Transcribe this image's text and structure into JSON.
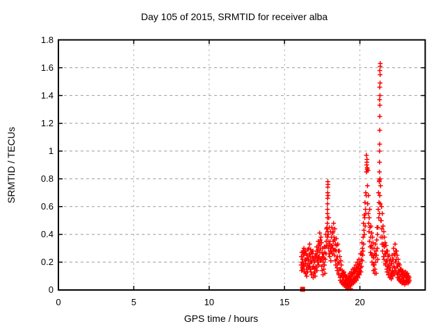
{
  "page": {
    "background": "#ffffff"
  },
  "chart_data": {
    "type": "scatter",
    "title": "Day 105 of 2015, SRMTID for receiver alba",
    "xlabel": "GPS time / hours",
    "ylabel": "SRMTID / TECUs",
    "xlim": [
      0,
      24.33
    ],
    "ylim": [
      0,
      1.8
    ],
    "xticks": {
      "values": [
        0,
        5,
        10,
        15,
        20
      ],
      "labels": [
        "0",
        "5",
        "10",
        "15",
        "20"
      ]
    },
    "yticks": {
      "values": [
        0,
        0.2,
        0.4,
        0.6,
        0.8,
        1,
        1.2,
        1.4,
        1.6,
        1.8
      ],
      "labels": [
        "0",
        "0.2",
        "0.4",
        "0.6",
        "0.8",
        "1",
        "1.2",
        "1.4",
        "1.6",
        "1.8"
      ]
    },
    "grid": true,
    "legend_position": "none",
    "marker": "plus",
    "marker_color": "#ff0000",
    "grid_color": "#999999",
    "border_color": "#000000",
    "notes": "dense + marker scatter from ~16.1h to ~23.3h; filled square datum on axis at start; spikes to 0.78 near 17.9h, ~0.97 near 20.45h, max 1.63 near 21.35h",
    "square_point": [
      16.2,
      0.005
    ],
    "series_runs": [
      [
        16.1,
        0.017,
        [
          0.18,
          0.24,
          0.14,
          0.27,
          0.2,
          0.16
        ]
      ],
      [
        16.2,
        0.017,
        [
          0.22,
          0.15,
          0.28,
          0.19,
          0.25,
          0.3
        ]
      ],
      [
        16.3,
        0.017,
        [
          0.17,
          0.26,
          0.13,
          0.22,
          0.28,
          0.19
        ]
      ],
      [
        16.4,
        0.017,
        [
          0.12,
          0.21,
          0.26,
          0.15,
          0.1,
          0.23
        ]
      ],
      [
        16.5,
        0.017,
        [
          0.18,
          0.25,
          0.13,
          0.29,
          0.21,
          0.16
        ]
      ],
      [
        16.6,
        0.017,
        [
          0.22,
          0.3,
          0.17,
          0.26,
          0.33,
          0.19
        ]
      ],
      [
        16.7,
        0.017,
        [
          0.15,
          0.24,
          0.29,
          0.13,
          0.21,
          0.27
        ]
      ],
      [
        16.8,
        0.017,
        [
          0.11,
          0.2,
          0.26,
          0.16,
          0.23,
          0.28
        ]
      ],
      [
        16.9,
        0.017,
        [
          0.09,
          0.17,
          0.23,
          0.12,
          0.2,
          0.15
        ]
      ],
      [
        17.0,
        0.017,
        [
          0.13,
          0.21,
          0.1,
          0.24,
          0.17,
          0.26
        ]
      ],
      [
        17.1,
        0.017,
        [
          0.16,
          0.25,
          0.31,
          0.14,
          0.22,
          0.28
        ]
      ],
      [
        17.2,
        0.017,
        [
          0.2,
          0.29,
          0.35,
          0.23,
          0.18,
          0.32
        ]
      ],
      [
        17.3,
        0.017,
        [
          0.24,
          0.33,
          0.41,
          0.27,
          0.36,
          0.21
        ]
      ],
      [
        17.4,
        0.017,
        [
          0.3,
          0.38,
          0.22,
          0.34,
          0.17,
          0.27
        ]
      ],
      [
        17.5,
        0.017,
        [
          0.14,
          0.24,
          0.3,
          0.11,
          0.2,
          0.26
        ]
      ],
      [
        17.6,
        0.017,
        [
          0.15,
          0.23,
          0.31,
          0.18,
          0.27,
          0.12
        ]
      ],
      [
        17.7,
        0.017,
        [
          0.22,
          0.31,
          0.4,
          0.26,
          0.35,
          0.44
        ]
      ],
      [
        17.8,
        0.017,
        [
          0.32,
          0.45,
          0.38,
          0.55,
          0.42,
          0.35
        ]
      ],
      [
        17.9,
        0.017,
        [
          0.4,
          0.3,
          0.52,
          0.26,
          0.45,
          0.33
        ]
      ],
      [
        18.0,
        0.017,
        [
          0.24,
          0.35,
          0.28,
          0.42,
          0.21,
          0.31
        ]
      ],
      [
        18.1,
        0.017,
        [
          0.28,
          0.38,
          0.45,
          0.32,
          0.26,
          0.41
        ]
      ],
      [
        18.2,
        0.017,
        [
          0.3,
          0.42,
          0.35,
          0.48,
          0.28,
          0.38
        ]
      ],
      [
        18.3,
        0.017,
        [
          0.25,
          0.36,
          0.44,
          0.29,
          0.21,
          0.33
        ]
      ],
      [
        18.4,
        0.017,
        [
          0.18,
          0.28,
          0.37,
          0.22,
          0.32,
          0.16
        ]
      ],
      [
        18.5,
        0.017,
        [
          0.14,
          0.24,
          0.33,
          0.19,
          0.28,
          0.12
        ]
      ],
      [
        18.6,
        0.017,
        [
          0.11,
          0.2,
          0.28,
          0.15,
          0.24,
          0.09
        ]
      ],
      [
        18.7,
        0.017,
        [
          0.07,
          0.15,
          0.21,
          0.11,
          0.18,
          0.06
        ]
      ],
      [
        18.8,
        0.017,
        [
          0.05,
          0.1,
          0.14,
          0.07,
          0.12,
          0.04
        ]
      ],
      [
        18.9,
        0.017,
        [
          0.04,
          0.09,
          0.13,
          0.06,
          0.11,
          0.03
        ]
      ],
      [
        19.0,
        0.017,
        [
          0.03,
          0.07,
          0.11,
          0.05,
          0.09,
          0.02
        ]
      ],
      [
        19.1,
        0.017,
        [
          0.02,
          0.06,
          0.09,
          0.04,
          0.07,
          0.01
        ]
      ],
      [
        19.2,
        0.017,
        [
          0.03,
          0.08,
          0.05,
          0.1,
          0.02,
          0.06
        ]
      ],
      [
        19.3,
        0.017,
        [
          0.04,
          0.09,
          0.12,
          0.06,
          0.03,
          0.08
        ]
      ],
      [
        19.4,
        0.017,
        [
          0.05,
          0.1,
          0.13,
          0.07,
          0.04,
          0.11
        ]
      ],
      [
        19.5,
        0.017,
        [
          0.06,
          0.11,
          0.15,
          0.08,
          0.05,
          0.13
        ]
      ],
      [
        19.6,
        0.017,
        [
          0.07,
          0.12,
          0.16,
          0.09,
          0.06,
          0.14
        ]
      ],
      [
        19.7,
        0.017,
        [
          0.08,
          0.13,
          0.18,
          0.1,
          0.07,
          0.15
        ]
      ],
      [
        19.8,
        0.017,
        [
          0.1,
          0.15,
          0.2,
          0.12,
          0.09,
          0.17
        ]
      ],
      [
        19.9,
        0.017,
        [
          0.12,
          0.17,
          0.22,
          0.14,
          0.11,
          0.19
        ]
      ],
      [
        20.0,
        0.017,
        [
          0.14,
          0.19,
          0.26,
          0.16,
          0.13,
          0.22
        ]
      ],
      [
        20.1,
        0.017,
        [
          0.17,
          0.26,
          0.34,
          0.21,
          0.3,
          0.25
        ]
      ],
      [
        20.2,
        0.017,
        [
          0.28,
          0.38,
          0.48,
          0.33,
          0.43,
          0.54
        ]
      ],
      [
        20.3,
        0.017,
        [
          0.4,
          0.52,
          0.63,
          0.46,
          0.58,
          0.7
        ]
      ],
      [
        20.4,
        0.017,
        [
          0.55,
          0.68,
          0.85,
          0.9,
          0.94,
          0.88
        ]
      ],
      [
        20.5,
        0.017,
        [
          0.75,
          0.62,
          0.86,
          0.55,
          0.68,
          0.48
        ]
      ],
      [
        20.6,
        0.017,
        [
          0.42,
          0.52,
          0.35,
          0.58,
          0.45,
          0.31
        ]
      ],
      [
        20.7,
        0.017,
        [
          0.27,
          0.38,
          0.46,
          0.32,
          0.25,
          0.41
        ]
      ],
      [
        20.8,
        0.017,
        [
          0.2,
          0.3,
          0.38,
          0.25,
          0.34,
          0.18
        ]
      ],
      [
        20.9,
        0.017,
        [
          0.14,
          0.23,
          0.3,
          0.18,
          0.26,
          0.12
        ]
      ],
      [
        21.0,
        0.017,
        [
          0.15,
          0.25,
          0.33,
          0.2,
          0.28,
          0.12
        ]
      ],
      [
        21.1,
        0.017,
        [
          0.25,
          0.36,
          0.45,
          0.3,
          0.4,
          0.22
        ]
      ],
      [
        21.2,
        0.017,
        [
          0.45,
          0.58,
          0.7,
          0.52,
          0.63,
          0.78
        ]
      ],
      [
        21.3,
        0.017,
        [
          0.55,
          0.68,
          0.8,
          0.62,
          0.75,
          0.5
        ]
      ],
      [
        21.4,
        0.017,
        [
          0.38,
          0.5,
          0.6,
          0.44,
          0.33,
          0.55
        ]
      ],
      [
        21.5,
        0.017,
        [
          0.28,
          0.38,
          0.46,
          0.33,
          0.24,
          0.42
        ]
      ],
      [
        21.6,
        0.017,
        [
          0.22,
          0.31,
          0.38,
          0.26,
          0.34,
          0.19
        ]
      ],
      [
        21.7,
        0.017,
        [
          0.18,
          0.26,
          0.32,
          0.21,
          0.28,
          0.15
        ]
      ],
      [
        21.8,
        0.017,
        [
          0.13,
          0.21,
          0.28,
          0.17,
          0.24,
          0.11
        ]
      ],
      [
        21.9,
        0.017,
        [
          0.11,
          0.18,
          0.25,
          0.14,
          0.21,
          0.09
        ]
      ],
      [
        22.0,
        0.017,
        [
          0.09,
          0.16,
          0.22,
          0.12,
          0.19,
          0.08
        ]
      ],
      [
        22.1,
        0.017,
        [
          0.11,
          0.19,
          0.25,
          0.14,
          0.22,
          0.1
        ]
      ],
      [
        22.2,
        0.017,
        [
          0.13,
          0.22,
          0.3,
          0.17,
          0.26,
          0.12
        ]
      ],
      [
        22.3,
        0.017,
        [
          0.16,
          0.25,
          0.33,
          0.2,
          0.28,
          0.14
        ]
      ],
      [
        22.4,
        0.017,
        [
          0.13,
          0.22,
          0.28,
          0.17,
          0.25,
          0.11
        ]
      ],
      [
        22.5,
        0.017,
        [
          0.09,
          0.17,
          0.22,
          0.13,
          0.19,
          0.08
        ]
      ],
      [
        22.6,
        0.017,
        [
          0.07,
          0.13,
          0.18,
          0.1,
          0.15,
          0.06
        ]
      ],
      [
        22.7,
        0.017,
        [
          0.06,
          0.11,
          0.15,
          0.08,
          0.13,
          0.05
        ]
      ],
      [
        22.8,
        0.017,
        [
          0.05,
          0.1,
          0.14,
          0.07,
          0.12,
          0.05
        ]
      ],
      [
        22.9,
        0.017,
        [
          0.05,
          0.09,
          0.12,
          0.06,
          0.1,
          0.04
        ]
      ],
      [
        23.0,
        0.017,
        [
          0.06,
          0.1,
          0.13,
          0.07,
          0.11,
          0.05
        ]
      ],
      [
        23.1,
        0.017,
        [
          0.05,
          0.09,
          0.12,
          0.07,
          0.1,
          0.06
        ]
      ],
      [
        23.2,
        0.017,
        [
          0.05,
          0.08,
          0.1,
          0.06,
          0.09,
          0.07
        ]
      ]
    ],
    "spike_points": [
      [
        17.84,
        0.48
      ],
      [
        17.845,
        0.52
      ],
      [
        17.85,
        0.58
      ],
      [
        17.855,
        0.62
      ],
      [
        17.86,
        0.66
      ],
      [
        17.865,
        0.7
      ],
      [
        17.87,
        0.74
      ],
      [
        17.875,
        0.78
      ],
      [
        17.88,
        0.76
      ],
      [
        17.885,
        0.68
      ],
      [
        20.43,
        0.97
      ],
      [
        20.46,
        0.92
      ],
      [
        20.49,
        0.87
      ],
      [
        21.29,
        0.79
      ],
      [
        21.295,
        0.85
      ],
      [
        21.3,
        0.92
      ],
      [
        21.305,
        1.0
      ],
      [
        21.305,
        1.37
      ],
      [
        21.31,
        1.05
      ],
      [
        21.315,
        1.15
      ],
      [
        21.315,
        1.46
      ],
      [
        21.32,
        1.25
      ],
      [
        21.325,
        1.33
      ],
      [
        21.325,
        1.58
      ],
      [
        21.33,
        1.4
      ],
      [
        21.335,
        1.49
      ],
      [
        21.34,
        1.55
      ],
      [
        21.345,
        1.61
      ],
      [
        21.35,
        1.63
      ],
      [
        19.38,
        0.01
      ]
    ]
  }
}
